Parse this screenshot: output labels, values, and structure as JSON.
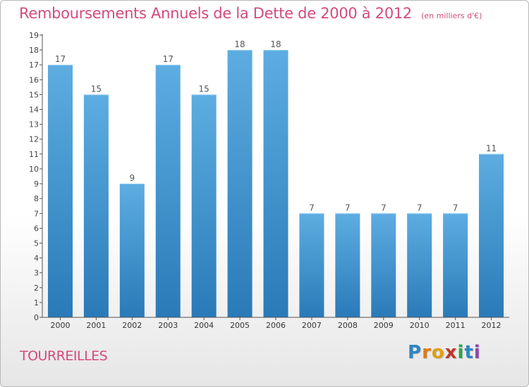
{
  "header": {
    "title": "Remboursements Annuels de la Dette de 2000 à 2012",
    "subtitle": "(en milliers d'€)"
  },
  "footer": {
    "commune": "TOURREILLES",
    "logo_text": "Proxiti"
  },
  "colors": {
    "title": "#d24b7e",
    "bar_light": "#5dade2",
    "bar_dark": "#2a7ab8",
    "axis": "#555555"
  },
  "chart_data": {
    "type": "bar",
    "title": "Remboursements Annuels de la Dette de 2000 à 2012",
    "subtitle": "(en milliers d'€)",
    "categories": [
      "2000",
      "2001",
      "2002",
      "2003",
      "2004",
      "2005",
      "2006",
      "2007",
      "2008",
      "2009",
      "2010",
      "2011",
      "2012"
    ],
    "values": [
      17,
      15,
      9,
      17,
      15,
      18,
      18,
      7,
      7,
      7,
      7,
      7,
      11
    ],
    "ylim": [
      0,
      19
    ],
    "yticks": [
      0,
      1,
      2,
      3,
      4,
      5,
      6,
      7,
      8,
      9,
      10,
      11,
      12,
      13,
      14,
      15,
      16,
      17,
      18,
      19
    ],
    "data_labels": true,
    "grid": false,
    "xlabel": "",
    "ylabel": ""
  }
}
